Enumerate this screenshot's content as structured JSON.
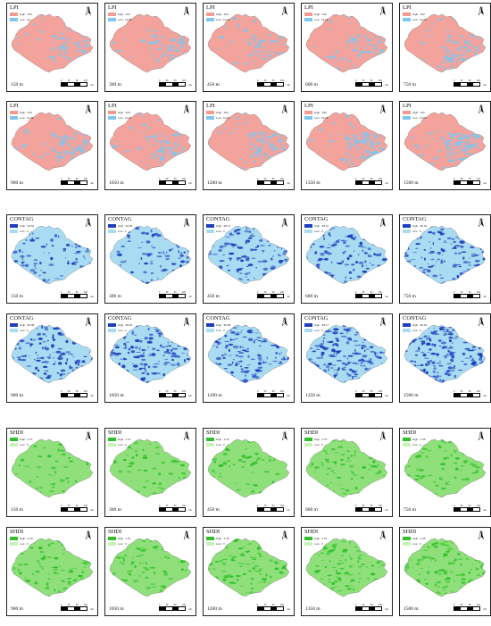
{
  "groups": [
    {
      "index": "LPI",
      "colors": {
        "high": "#f59a90",
        "low": "#7ec6ef",
        "base": "#f3a39c"
      },
      "legend": {
        "high": "High : 100",
        "low": "Low : 0"
      },
      "panels": [
        {
          "res": "150 m",
          "low": "Low : 16"
        },
        {
          "res": "300 m",
          "low": "Low : 14.69"
        },
        {
          "res": "450 m",
          "low": "Low : 14.22"
        },
        {
          "res": "600 m",
          "low": "Low : 13.18"
        },
        {
          "res": "750 m",
          "low": "Low : 12.18"
        },
        {
          "res": "900 m",
          "low": "Low : 11.78"
        },
        {
          "res": "1050 m",
          "low": "Low : 11.07"
        },
        {
          "res": "1200 m",
          "low": "Low : 10.37"
        },
        {
          "res": "1350 m",
          "low": "Low : 10.05"
        },
        {
          "res": "1500 m",
          "low": "Low : 10.05"
        }
      ]
    },
    {
      "index": "CONTAG",
      "colors": {
        "high": "#1c3fbf",
        "low": "#a9dcf2",
        "base": "#2a4ec9"
      },
      "panels": [
        {
          "res": "150 m",
          "high": "High : 99.63",
          "low": "Low : 0"
        },
        {
          "res": "300 m",
          "high": "High : 99.66",
          "low": "Low : 0"
        },
        {
          "res": "450 m",
          "high": "High : 98.72",
          "low": "Low : 0"
        },
        {
          "res": "600 m",
          "high": "High : 98.11",
          "low": "Low : 0"
        },
        {
          "res": "750 m",
          "high": "High : 98.03",
          "low": "Low : 0"
        },
        {
          "res": "900 m",
          "high": "High : 98.08",
          "low": "Low : 0"
        },
        {
          "res": "1050 m",
          "high": "High : 98.36",
          "low": "Low : 0"
        },
        {
          "res": "1200 m",
          "high": "High : 98.68",
          "low": "Low : 0"
        },
        {
          "res": "1350 m",
          "high": "High : 98.17",
          "low": "Low : 0"
        },
        {
          "res": "1500 m",
          "high": "High : 98.62",
          "low": "Low : 0"
        }
      ]
    },
    {
      "index": "SHDI",
      "colors": {
        "high": "#2fc12a",
        "low": "#c9f2b8",
        "base": "#8fe07a"
      },
      "panels": [
        {
          "res": "150 m",
          "high": "High : 1.37",
          "low": "Low : 0"
        },
        {
          "res": "300 m",
          "high": "High : 1.37",
          "low": "Low : 0"
        },
        {
          "res": "450 m",
          "high": "High : 1.44",
          "low": "Low : 0"
        },
        {
          "res": "600 m",
          "high": "High : 1.37",
          "low": "Low : 0"
        },
        {
          "res": "750 m",
          "high": "High : 1.35",
          "low": "Low : 0"
        },
        {
          "res": "900 m",
          "high": "High : 1.40",
          "low": "Low : 0"
        },
        {
          "res": "1050 m",
          "high": "High : 1.51",
          "low": "Low : 0"
        },
        {
          "res": "1200 m",
          "high": "High : 1.35",
          "low": "Low : 0"
        },
        {
          "res": "1350 m",
          "high": "High : 1.51",
          "low": "Low : 0"
        },
        {
          "res": "1500 m",
          "high": "High : 1.35",
          "low": "Low : 0"
        }
      ]
    }
  ],
  "north_label": "N",
  "scale": {
    "ticks": [
      "0",
      "25",
      "50",
      "100"
    ],
    "unit": "km"
  }
}
